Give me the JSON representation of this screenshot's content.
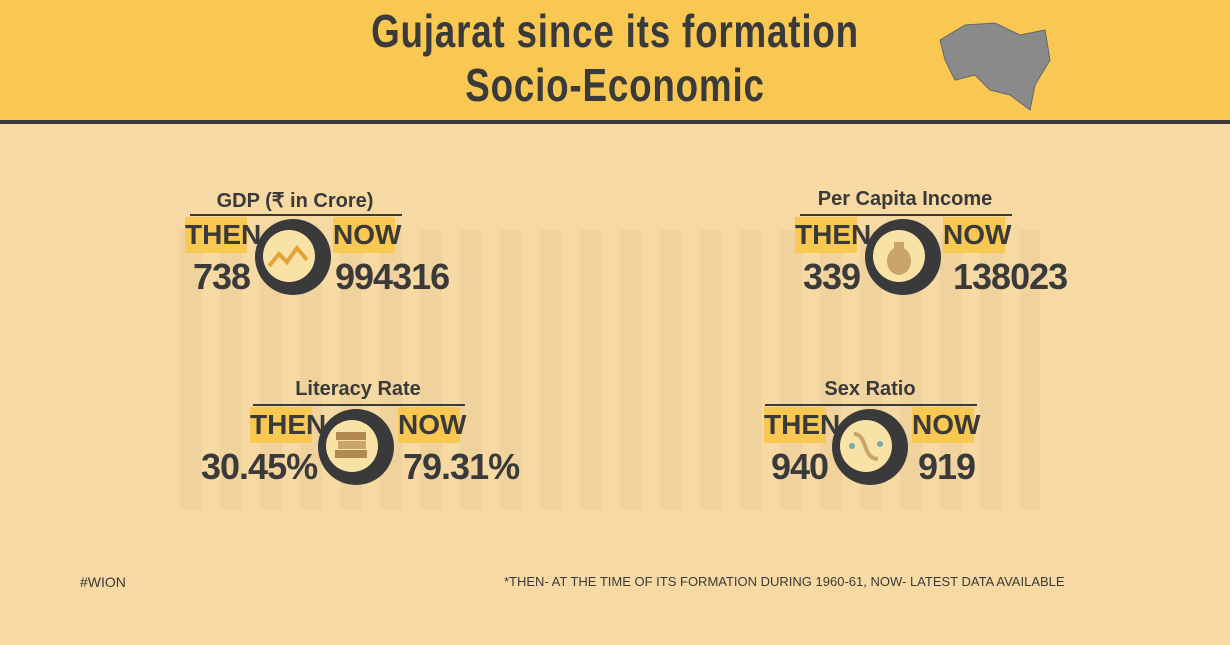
{
  "header": {
    "title_line1": "Gujarat since its formation",
    "title_line2": "Socio-Economic"
  },
  "stats": [
    {
      "label": "GDP (₹ in Crore)",
      "then_label": "THEN",
      "now_label": "NOW",
      "then_value": "738",
      "now_value": "994316"
    },
    {
      "label": "Per Capita Income",
      "then_label": "THEN",
      "now_label": "NOW",
      "then_value": "339",
      "now_value": "138023"
    },
    {
      "label": "Literacy Rate",
      "then_label": "THEN",
      "now_label": "NOW",
      "then_value": "30.45%",
      "now_value": "79.31%"
    },
    {
      "label": "Sex Ratio",
      "then_label": "THEN",
      "now_label": "NOW",
      "then_value": "940",
      "now_value": "919"
    }
  ],
  "footer": {
    "hashtag": "#WION",
    "note": "*THEN- AT THE TIME OF ITS FORMATION DURING 1960-61, NOW- LATEST DATA AVAILABLE"
  }
}
